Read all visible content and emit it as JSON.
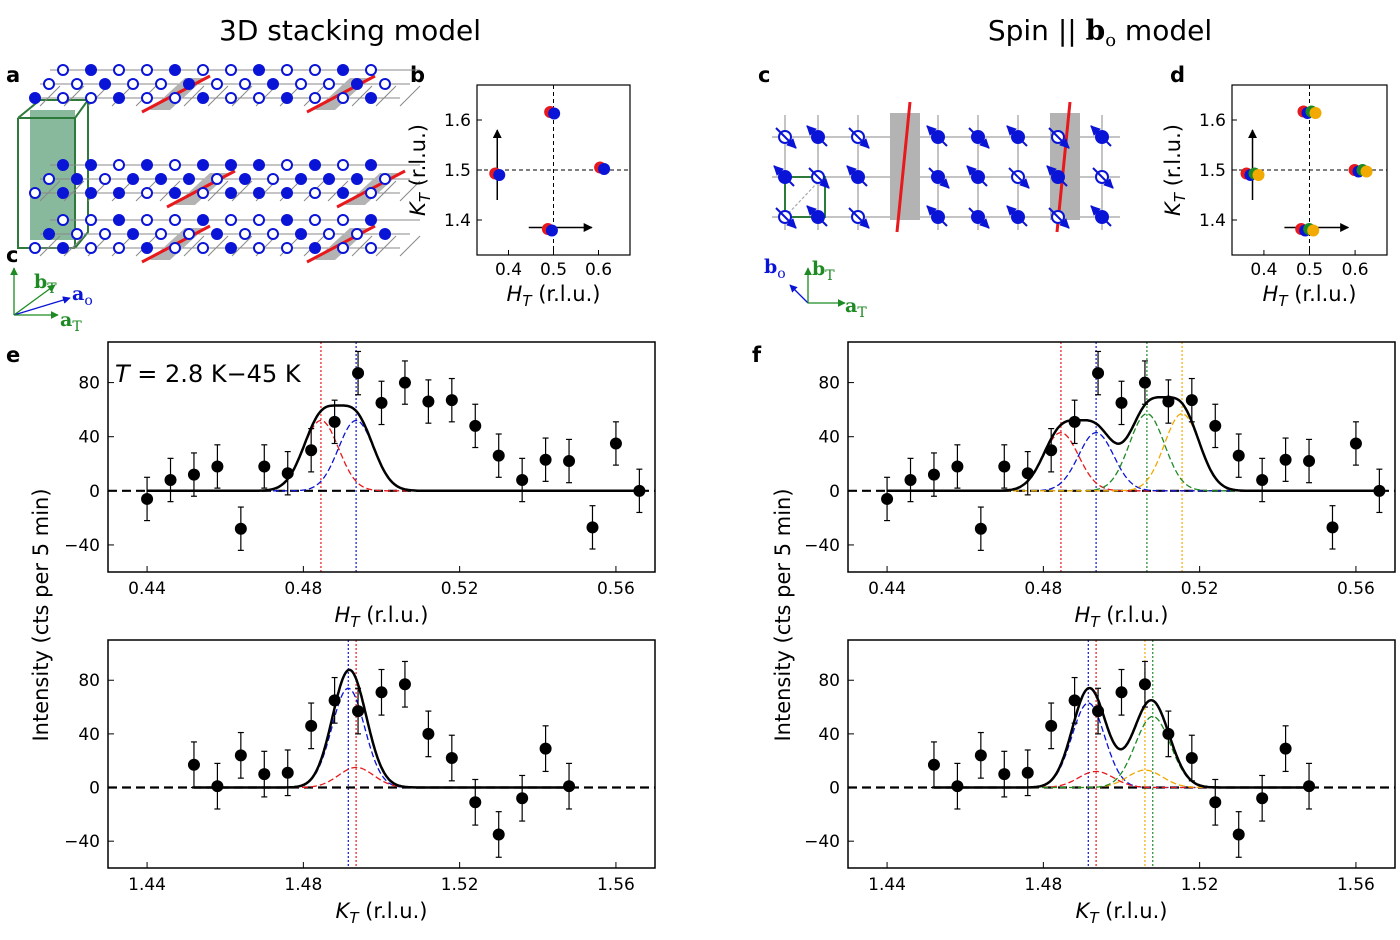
{
  "titles": {
    "left": "3D stacking model",
    "right_prefix": "Spin || ",
    "right_vec": "b",
    "right_vec_sub": "o",
    "right_suffix": " model"
  },
  "labels": {
    "a": "a",
    "b": "b",
    "c": "c",
    "d": "d",
    "e": "e",
    "f": "f",
    "c_axis": "c",
    "temp_T": "T",
    "temp_rest": " = 2.8 K−45 K"
  },
  "vectors": {
    "bT": "b",
    "bT_sub": "T",
    "ao": "a",
    "ao_sub": "o",
    "aT": "a",
    "aT_sub": "T",
    "bo": "b",
    "bo_sub": "o"
  },
  "axis_text": {
    "H": "H",
    "K": "K",
    "sub": "T",
    "unit": " (r.l.u.)",
    "intensity": "Intensity (cts per 5 min)"
  },
  "colors": {
    "red": "#e8191c",
    "blue": "#0a14d6",
    "green": "#1e8a24",
    "orange": "#f2a900",
    "gray": "#b3b3b3",
    "dkgreen": "#2d7a3a"
  },
  "chart_data": [
    {
      "id": "b",
      "type": "scatter",
      "xlabel": "H_T (r.l.u.)",
      "ylabel": "K_T (r.l.u.)",
      "xlim": [
        0.33,
        0.67
      ],
      "ylim": [
        1.33,
        1.67
      ],
      "xticks": [
        "0.4",
        "0.5",
        "0.6"
      ],
      "yticks": [
        "1.4",
        "1.5",
        "1.6"
      ],
      "points": [
        {
          "x": 0.375,
          "y": 1.493,
          "colors": [
            "red",
            "blue"
          ]
        },
        {
          "x": 0.497,
          "y": 1.616,
          "colors": [
            "red",
            "blue"
          ]
        },
        {
          "x": 0.608,
          "y": 1.505,
          "colors": [
            "red",
            "blue"
          ]
        },
        {
          "x": 0.492,
          "y": 1.382,
          "colors": [
            "red",
            "blue"
          ]
        }
      ]
    },
    {
      "id": "d",
      "type": "scatter",
      "xlabel": "H_T (r.l.u.)",
      "ylabel": "K_T (r.l.u.)",
      "xlim": [
        0.33,
        0.67
      ],
      "ylim": [
        1.33,
        1.67
      ],
      "xticks": [
        "0.4",
        "0.5",
        "0.6"
      ],
      "yticks": [
        "1.4",
        "1.5",
        "1.6"
      ],
      "points": [
        {
          "x": 0.375,
          "y": 1.493,
          "colors": [
            "red",
            "blue",
            "green",
            "orange"
          ]
        },
        {
          "x": 0.5,
          "y": 1.617,
          "colors": [
            "red",
            "blue",
            "green",
            "orange"
          ]
        },
        {
          "x": 0.612,
          "y": 1.5,
          "colors": [
            "red",
            "blue",
            "green",
            "orange"
          ]
        },
        {
          "x": 0.495,
          "y": 1.382,
          "colors": [
            "red",
            "blue",
            "green",
            "orange"
          ]
        }
      ]
    },
    {
      "id": "e-top",
      "type": "scatter",
      "xlabel": "H_T (r.l.u.)",
      "ylabel": "Intensity (cts per 5 min)",
      "xlim": [
        0.43,
        0.57
      ],
      "ylim": [
        -60,
        110
      ],
      "xticks": [
        "0.44",
        "0.48",
        "0.52",
        "0.56"
      ],
      "yticks": [
        "−40",
        "0",
        "40",
        "80"
      ],
      "annotation": "T = 2.8 K−45 K",
      "x": [
        0.44,
        0.446,
        0.452,
        0.458,
        0.464,
        0.47,
        0.476,
        0.482,
        0.488,
        0.494,
        0.5,
        0.506,
        0.512,
        0.518,
        0.524,
        0.53,
        0.536,
        0.542,
        0.548,
        0.554,
        0.56,
        0.566
      ],
      "y": [
        -6,
        8,
        12,
        18,
        -28,
        18,
        13,
        30,
        51,
        87,
        65,
        80,
        66,
        67,
        48,
        26,
        8,
        23,
        22,
        -27,
        35,
        0
      ],
      "err": [
        16,
        16,
        16,
        16,
        16,
        16,
        16,
        16,
        16,
        16,
        16,
        16,
        16,
        16,
        16,
        16,
        16,
        16,
        16,
        16,
        16,
        16
      ],
      "components": [
        {
          "color": "red",
          "center": 0.4845,
          "amp": 52,
          "sigma": 0.0045
        },
        {
          "color": "blue",
          "center": 0.4935,
          "amp": 52,
          "sigma": 0.0045
        }
      ],
      "vlines": [
        {
          "x": 0.4845,
          "color": "red"
        },
        {
          "x": 0.4935,
          "color": "blue"
        }
      ]
    },
    {
      "id": "e-bottom",
      "type": "scatter",
      "xlabel": "K_T (r.l.u.)",
      "ylabel": "Intensity (cts per 5 min)",
      "xlim": [
        1.43,
        1.57
      ],
      "ylim": [
        -60,
        110
      ],
      "xticks": [
        "1.44",
        "1.48",
        "1.52",
        "1.56"
      ],
      "yticks": [
        "−40",
        "0",
        "40",
        "80"
      ],
      "x": [
        1.452,
        1.458,
        1.464,
        1.47,
        1.476,
        1.482,
        1.488,
        1.494,
        1.5,
        1.506,
        1.512,
        1.518,
        1.524,
        1.53,
        1.536,
        1.542,
        1.548
      ],
      "y": [
        17,
        1,
        24,
        10,
        11,
        46,
        65,
        57,
        71,
        77,
        40,
        22,
        -11,
        -35,
        -8,
        29,
        1
      ],
      "err": [
        17,
        17,
        17,
        17,
        17,
        17,
        17,
        17,
        17,
        17,
        17,
        17,
        17,
        17,
        17,
        17,
        17
      ],
      "components": [
        {
          "color": "blue",
          "center": 1.4915,
          "amp": 74,
          "sigma": 0.0042
        },
        {
          "color": "red",
          "center": 1.4935,
          "amp": 15,
          "sigma": 0.0045
        }
      ],
      "vlines": [
        {
          "x": 1.4915,
          "color": "blue"
        },
        {
          "x": 1.4935,
          "color": "red"
        }
      ]
    },
    {
      "id": "f-top",
      "type": "scatter",
      "xlabel": "H_T (r.l.u.)",
      "ylabel": "Intensity (cts per 5 min)",
      "xlim": [
        0.43,
        0.57
      ],
      "ylim": [
        -60,
        110
      ],
      "xticks": [
        "0.44",
        "0.48",
        "0.52",
        "0.56"
      ],
      "yticks": [
        "−40",
        "0",
        "40",
        "80"
      ],
      "x": [
        0.44,
        0.446,
        0.452,
        0.458,
        0.464,
        0.47,
        0.476,
        0.482,
        0.488,
        0.494,
        0.5,
        0.506,
        0.512,
        0.518,
        0.524,
        0.53,
        0.536,
        0.542,
        0.548,
        0.554,
        0.56,
        0.566
      ],
      "y": [
        -6,
        8,
        12,
        18,
        -28,
        18,
        13,
        30,
        51,
        87,
        65,
        80,
        66,
        67,
        48,
        26,
        8,
        23,
        22,
        -27,
        35,
        0
      ],
      "err": [
        16,
        16,
        16,
        16,
        16,
        16,
        16,
        16,
        16,
        16,
        16,
        16,
        16,
        16,
        16,
        16,
        16,
        16,
        16,
        16,
        16,
        16
      ],
      "components": [
        {
          "color": "red",
          "center": 0.4845,
          "amp": 43,
          "sigma": 0.0045
        },
        {
          "color": "blue",
          "center": 0.4935,
          "amp": 43,
          "sigma": 0.0045
        },
        {
          "color": "green",
          "center": 0.5065,
          "amp": 57,
          "sigma": 0.0045
        },
        {
          "color": "orange",
          "center": 0.5155,
          "amp": 57,
          "sigma": 0.0045
        }
      ],
      "vlines": [
        {
          "x": 0.4845,
          "color": "red"
        },
        {
          "x": 0.4935,
          "color": "blue"
        },
        {
          "x": 0.5065,
          "color": "green"
        },
        {
          "x": 0.5155,
          "color": "orange"
        }
      ]
    },
    {
      "id": "f-bottom",
      "type": "scatter",
      "xlabel": "K_T (r.l.u.)",
      "ylabel": "Intensity (cts per 5 min)",
      "xlim": [
        1.43,
        1.57
      ],
      "ylim": [
        -60,
        110
      ],
      "xticks": [
        "1.44",
        "1.48",
        "1.52",
        "1.56"
      ],
      "yticks": [
        "−40",
        "0",
        "40",
        "80"
      ],
      "x": [
        1.452,
        1.458,
        1.464,
        1.47,
        1.476,
        1.482,
        1.488,
        1.494,
        1.5,
        1.506,
        1.512,
        1.518,
        1.524,
        1.53,
        1.536,
        1.542,
        1.548
      ],
      "y": [
        17,
        1,
        24,
        10,
        11,
        46,
        65,
        57,
        71,
        77,
        40,
        22,
        -11,
        -35,
        -8,
        29,
        1
      ],
      "err": [
        17,
        17,
        17,
        17,
        17,
        17,
        17,
        17,
        17,
        17,
        17,
        17,
        17,
        17,
        17,
        17,
        17
      ],
      "components": [
        {
          "color": "blue",
          "center": 1.4915,
          "amp": 63,
          "sigma": 0.0042
        },
        {
          "color": "red",
          "center": 1.4935,
          "amp": 12,
          "sigma": 0.0045
        },
        {
          "color": "orange",
          "center": 1.506,
          "amp": 13,
          "sigma": 0.0045
        },
        {
          "color": "green",
          "center": 1.508,
          "amp": 53,
          "sigma": 0.0045
        }
      ],
      "vlines": [
        {
          "x": 1.4915,
          "color": "blue"
        },
        {
          "x": 1.4935,
          "color": "red"
        },
        {
          "x": 1.506,
          "color": "orange"
        },
        {
          "x": 1.508,
          "color": "green"
        }
      ]
    }
  ]
}
